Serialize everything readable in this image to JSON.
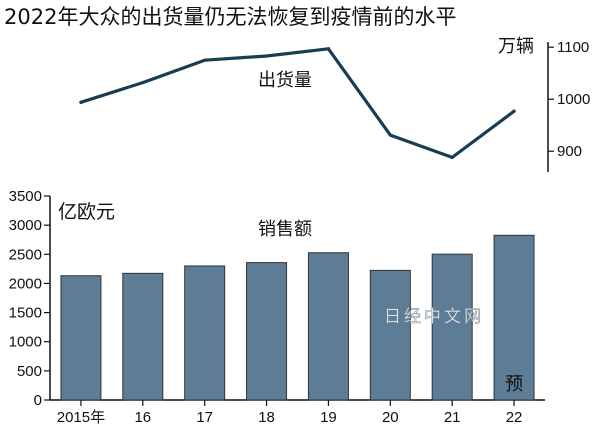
{
  "title": "2022年大众的出货量仍无法恢复到疫情前的水平",
  "watermark": "日经中文网",
  "colors": {
    "line": "#1b3d52",
    "bar_fill": "#5d7c95",
    "bar_stroke": "#333333",
    "axis": "#111111"
  },
  "chart_data": [
    {
      "type": "line",
      "series_label": "出货量",
      "unit": "万辆",
      "x": [
        "2015年",
        "16",
        "17",
        "18",
        "19",
        "20",
        "21",
        "22"
      ],
      "values": [
        994,
        1032,
        1075,
        1083,
        1097,
        931,
        888,
        977
      ],
      "y_ticks": [
        900,
        1000,
        1100
      ],
      "ylim": [
        860,
        1110
      ],
      "axis_side": "right"
    },
    {
      "type": "bar",
      "series_label": "销售额",
      "unit": "亿欧元",
      "categories": [
        "2015年",
        "16",
        "17",
        "18",
        "19",
        "20",
        "21",
        "22"
      ],
      "values": [
        2132,
        2173,
        2300,
        2357,
        2527,
        2224,
        2502,
        2826
      ],
      "y_ticks": [
        0,
        500,
        1000,
        1500,
        2000,
        2500,
        3000,
        3500
      ],
      "ylim": [
        0,
        3500
      ],
      "forecast_category": "22",
      "forecast_mark": "预",
      "grid": false
    }
  ]
}
